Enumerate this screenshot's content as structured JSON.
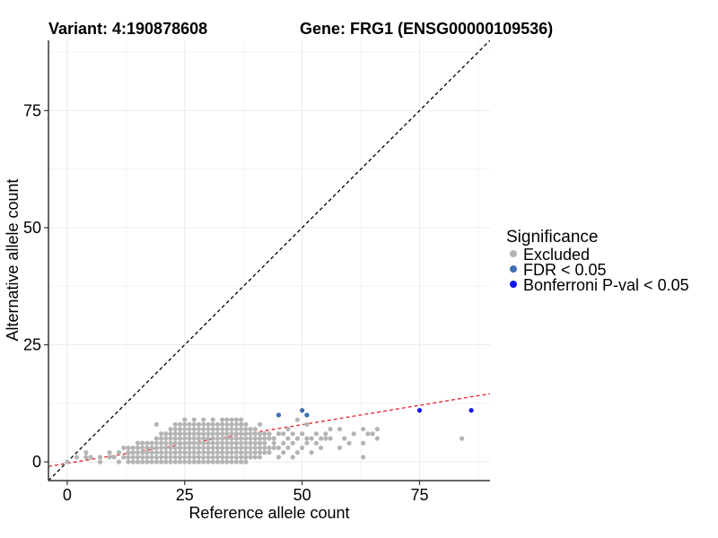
{
  "chart_data": {
    "type": "scatter",
    "title_left": "Variant: 4:190878608",
    "title_right": "Gene: FRG1 (ENSG00000109536)",
    "xlabel": "Reference allele count",
    "ylabel": "Alternative allele count",
    "xlim": [
      -4,
      90
    ],
    "ylim": [
      -4,
      90
    ],
    "xticks": [
      0,
      25,
      50,
      75
    ],
    "yticks": [
      0,
      25,
      50,
      75
    ],
    "grid": true,
    "reference_lines": [
      {
        "style": "dashed",
        "color": "#000000",
        "intercept": 0,
        "slope": 1
      },
      {
        "style": "dashed",
        "color": "#e8202a",
        "intercept": -0.3,
        "slope": 0.165
      }
    ],
    "legend": {
      "title": "Significance",
      "position": "right",
      "entries": [
        {
          "label": "Excluded",
          "color": "#b4b4b4"
        },
        {
          "label": "FDR < 0.05",
          "color": "#3f6fb0"
        },
        {
          "label": "Bonferroni P-val < 0.05",
          "color": "#1515f0"
        }
      ]
    },
    "series": [
      {
        "name": "Excluded",
        "color": "#b4b4b4",
        "points": [
          [
            0,
            0
          ],
          [
            2,
            1
          ],
          [
            4,
            1
          ],
          [
            4,
            2
          ],
          [
            5,
            1
          ],
          [
            7,
            0
          ],
          [
            7,
            1
          ],
          [
            9,
            1
          ],
          [
            9,
            2
          ],
          [
            10,
            1
          ],
          [
            11,
            0
          ],
          [
            11,
            2
          ],
          [
            12,
            1
          ],
          [
            12,
            3
          ],
          [
            13,
            0
          ],
          [
            13,
            1
          ],
          [
            13,
            2
          ],
          [
            13,
            3
          ],
          [
            14,
            0
          ],
          [
            14,
            1
          ],
          [
            14,
            2
          ],
          [
            14,
            3
          ],
          [
            15,
            0
          ],
          [
            15,
            1
          ],
          [
            15,
            2
          ],
          [
            15,
            3
          ],
          [
            15,
            4
          ],
          [
            16,
            0
          ],
          [
            16,
            1
          ],
          [
            16,
            2
          ],
          [
            16,
            3
          ],
          [
            16,
            4
          ],
          [
            17,
            0
          ],
          [
            17,
            1
          ],
          [
            17,
            2
          ],
          [
            17,
            3
          ],
          [
            17,
            4
          ],
          [
            18,
            0
          ],
          [
            18,
            1
          ],
          [
            18,
            2
          ],
          [
            18,
            3
          ],
          [
            18,
            4
          ],
          [
            19,
            0
          ],
          [
            19,
            1
          ],
          [
            19,
            2
          ],
          [
            19,
            3
          ],
          [
            19,
            4
          ],
          [
            19,
            5
          ],
          [
            19,
            8
          ],
          [
            20,
            0
          ],
          [
            20,
            1
          ],
          [
            20,
            2
          ],
          [
            20,
            3
          ],
          [
            20,
            4
          ],
          [
            20,
            5
          ],
          [
            20,
            6
          ],
          [
            21,
            0
          ],
          [
            21,
            1
          ],
          [
            21,
            2
          ],
          [
            21,
            3
          ],
          [
            21,
            4
          ],
          [
            21,
            5
          ],
          [
            21,
            6
          ],
          [
            22,
            0
          ],
          [
            22,
            1
          ],
          [
            22,
            2
          ],
          [
            22,
            3
          ],
          [
            22,
            4
          ],
          [
            22,
            5
          ],
          [
            22,
            6
          ],
          [
            22,
            7
          ],
          [
            23,
            0
          ],
          [
            23,
            1
          ],
          [
            23,
            2
          ],
          [
            23,
            3
          ],
          [
            23,
            4
          ],
          [
            23,
            5
          ],
          [
            23,
            6
          ],
          [
            23,
            7
          ],
          [
            23,
            8
          ],
          [
            24,
            0
          ],
          [
            24,
            1
          ],
          [
            24,
            2
          ],
          [
            24,
            3
          ],
          [
            24,
            4
          ],
          [
            24,
            5
          ],
          [
            24,
            6
          ],
          [
            24,
            7
          ],
          [
            24,
            8
          ],
          [
            25,
            0
          ],
          [
            25,
            1
          ],
          [
            25,
            2
          ],
          [
            25,
            3
          ],
          [
            25,
            4
          ],
          [
            25,
            5
          ],
          [
            25,
            6
          ],
          [
            25,
            7
          ],
          [
            25,
            8
          ],
          [
            25,
            9
          ],
          [
            26,
            0
          ],
          [
            26,
            1
          ],
          [
            26,
            2
          ],
          [
            26,
            3
          ],
          [
            26,
            4
          ],
          [
            26,
            5
          ],
          [
            26,
            6
          ],
          [
            26,
            7
          ],
          [
            26,
            8
          ],
          [
            27,
            0
          ],
          [
            27,
            1
          ],
          [
            27,
            2
          ],
          [
            27,
            3
          ],
          [
            27,
            4
          ],
          [
            27,
            5
          ],
          [
            27,
            6
          ],
          [
            27,
            7
          ],
          [
            27,
            8
          ],
          [
            27,
            9
          ],
          [
            28,
            0
          ],
          [
            28,
            1
          ],
          [
            28,
            2
          ],
          [
            28,
            3
          ],
          [
            28,
            4
          ],
          [
            28,
            5
          ],
          [
            28,
            6
          ],
          [
            28,
            7
          ],
          [
            28,
            8
          ],
          [
            29,
            0
          ],
          [
            29,
            1
          ],
          [
            29,
            2
          ],
          [
            29,
            3
          ],
          [
            29,
            4
          ],
          [
            29,
            5
          ],
          [
            29,
            6
          ],
          [
            29,
            7
          ],
          [
            29,
            8
          ],
          [
            29,
            9
          ],
          [
            30,
            0
          ],
          [
            30,
            1
          ],
          [
            30,
            2
          ],
          [
            30,
            3
          ],
          [
            30,
            4
          ],
          [
            30,
            5
          ],
          [
            30,
            6
          ],
          [
            30,
            7
          ],
          [
            30,
            8
          ],
          [
            31,
            0
          ],
          [
            31,
            1
          ],
          [
            31,
            2
          ],
          [
            31,
            3
          ],
          [
            31,
            4
          ],
          [
            31,
            5
          ],
          [
            31,
            6
          ],
          [
            31,
            7
          ],
          [
            31,
            8
          ],
          [
            31,
            9
          ],
          [
            32,
            0
          ],
          [
            32,
            1
          ],
          [
            32,
            2
          ],
          [
            32,
            3
          ],
          [
            32,
            4
          ],
          [
            32,
            5
          ],
          [
            32,
            6
          ],
          [
            32,
            7
          ],
          [
            32,
            8
          ],
          [
            33,
            0
          ],
          [
            33,
            1
          ],
          [
            33,
            2
          ],
          [
            33,
            3
          ],
          [
            33,
            4
          ],
          [
            33,
            5
          ],
          [
            33,
            6
          ],
          [
            33,
            7
          ],
          [
            33,
            8
          ],
          [
            33,
            9
          ],
          [
            34,
            0
          ],
          [
            34,
            1
          ],
          [
            34,
            2
          ],
          [
            34,
            3
          ],
          [
            34,
            4
          ],
          [
            34,
            5
          ],
          [
            34,
            6
          ],
          [
            34,
            7
          ],
          [
            34,
            8
          ],
          [
            34,
            9
          ],
          [
            35,
            0
          ],
          [
            35,
            1
          ],
          [
            35,
            2
          ],
          [
            35,
            3
          ],
          [
            35,
            4
          ],
          [
            35,
            5
          ],
          [
            35,
            6
          ],
          [
            35,
            7
          ],
          [
            35,
            8
          ],
          [
            35,
            9
          ],
          [
            36,
            0
          ],
          [
            36,
            1
          ],
          [
            36,
            2
          ],
          [
            36,
            3
          ],
          [
            36,
            4
          ],
          [
            36,
            5
          ],
          [
            36,
            6
          ],
          [
            36,
            7
          ],
          [
            36,
            8
          ],
          [
            36,
            9
          ],
          [
            37,
            0
          ],
          [
            37,
            1
          ],
          [
            37,
            2
          ],
          [
            37,
            3
          ],
          [
            37,
            4
          ],
          [
            37,
            5
          ],
          [
            37,
            6
          ],
          [
            37,
            7
          ],
          [
            37,
            8
          ],
          [
            37,
            9
          ],
          [
            38,
            0
          ],
          [
            38,
            1
          ],
          [
            38,
            2
          ],
          [
            38,
            3
          ],
          [
            38,
            4
          ],
          [
            38,
            5
          ],
          [
            38,
            6
          ],
          [
            38,
            7
          ],
          [
            38,
            8
          ],
          [
            39,
            1
          ],
          [
            39,
            2
          ],
          [
            39,
            3
          ],
          [
            39,
            4
          ],
          [
            39,
            5
          ],
          [
            39,
            6
          ],
          [
            39,
            7
          ],
          [
            40,
            1
          ],
          [
            40,
            2
          ],
          [
            40,
            3
          ],
          [
            40,
            4
          ],
          [
            40,
            5
          ],
          [
            40,
            6
          ],
          [
            40,
            7
          ],
          [
            41,
            1
          ],
          [
            41,
            2
          ],
          [
            41,
            3
          ],
          [
            41,
            4
          ],
          [
            41,
            5
          ],
          [
            41,
            6
          ],
          [
            41,
            8
          ],
          [
            42,
            2
          ],
          [
            42,
            3
          ],
          [
            42,
            4
          ],
          [
            42,
            5
          ],
          [
            42,
            6
          ],
          [
            43,
            2
          ],
          [
            43,
            3
          ],
          [
            43,
            5
          ],
          [
            43,
            6
          ],
          [
            44,
            3
          ],
          [
            44,
            4
          ],
          [
            44,
            5
          ],
          [
            45,
            1
          ],
          [
            45,
            3
          ],
          [
            45,
            6
          ],
          [
            46,
            2
          ],
          [
            46,
            4
          ],
          [
            46,
            6
          ],
          [
            47,
            3
          ],
          [
            47,
            5
          ],
          [
            47,
            7
          ],
          [
            48,
            1
          ],
          [
            48,
            4
          ],
          [
            48,
            6
          ],
          [
            49,
            2
          ],
          [
            49,
            5
          ],
          [
            49,
            9
          ],
          [
            50,
            3
          ],
          [
            50,
            6
          ],
          [
            51,
            4
          ],
          [
            51,
            5
          ],
          [
            51,
            8
          ],
          [
            52,
            2
          ],
          [
            52,
            5
          ],
          [
            53,
            4
          ],
          [
            53,
            6
          ],
          [
            54,
            3
          ],
          [
            54,
            5
          ],
          [
            55,
            5
          ],
          [
            55,
            6
          ],
          [
            56,
            5
          ],
          [
            56,
            7
          ],
          [
            58,
            3
          ],
          [
            58,
            7
          ],
          [
            59,
            5
          ],
          [
            60,
            4
          ],
          [
            61,
            6
          ],
          [
            63,
            1
          ],
          [
            63,
            4
          ],
          [
            63,
            7
          ],
          [
            64,
            6
          ],
          [
            65,
            6
          ],
          [
            66,
            7
          ],
          [
            66,
            5
          ],
          [
            84,
            5
          ]
        ]
      },
      {
        "name": "FDR < 0.05",
        "color": "#3f6fb0",
        "points": [
          [
            45,
            10
          ],
          [
            50,
            11
          ],
          [
            51,
            10
          ]
        ]
      },
      {
        "name": "Bonferroni P-val < 0.05",
        "color": "#1515f0",
        "points": [
          [
            75,
            11
          ],
          [
            86,
            11
          ]
        ]
      }
    ]
  }
}
